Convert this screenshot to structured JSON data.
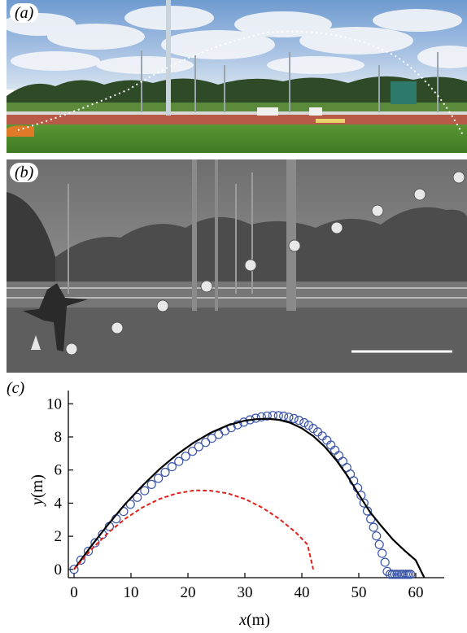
{
  "panels": {
    "a_label": "(a)",
    "b_label": "(b)",
    "c_label": "(c)"
  },
  "colors": {
    "measured_points": "#3a55a8",
    "model_curve": "#000000",
    "no_drag_curve": "#e0201c",
    "track": "#b85a48",
    "grass": "#4e8a2c"
  },
  "chart_data": {
    "type": "scatter",
    "title": "",
    "xlabel_var": "x",
    "xlabel_unit": "(m)",
    "ylabel_var": "y",
    "ylabel_unit": "(m)",
    "xlim": [
      -1,
      65
    ],
    "ylim": [
      -0.5,
      10.8
    ],
    "xticks": [
      0,
      10,
      20,
      30,
      40,
      50,
      60
    ],
    "yticks": [
      0,
      2,
      4,
      6,
      8,
      10
    ],
    "grid": false,
    "legend": "none",
    "series": [
      {
        "kind": "markers",
        "marker": "circle-open",
        "color": "#3a55a8",
        "x": [
          0.0,
          1.2,
          2.5,
          3.7,
          5.0,
          6.2,
          7.4,
          8.7,
          9.9,
          11.1,
          12.4,
          13.6,
          14.8,
          16.0,
          17.2,
          18.4,
          19.6,
          20.8,
          21.9,
          23.1,
          24.2,
          25.4,
          26.5,
          27.6,
          28.7,
          29.8,
          30.9,
          31.9,
          32.9,
          33.9,
          34.9,
          35.9,
          36.8,
          37.7,
          38.6,
          39.5,
          40.4,
          41.2,
          42.0,
          42.8,
          43.6,
          44.4,
          45.1,
          45.8,
          46.5,
          47.2,
          47.9,
          48.5,
          49.1,
          49.8,
          50.4,
          50.9,
          51.5,
          52.1,
          52.6,
          53.1,
          53.6,
          54.1,
          54.6,
          55.0,
          55.5,
          55.9,
          56.3,
          56.7,
          57.1,
          57.5,
          57.8,
          58.2,
          58.5,
          58.8,
          59.1
        ],
        "y": [
          0.0,
          0.56,
          1.09,
          1.61,
          2.11,
          2.59,
          3.05,
          3.5,
          3.93,
          4.35,
          4.75,
          5.13,
          5.5,
          5.86,
          6.2,
          6.52,
          6.83,
          7.13,
          7.41,
          7.67,
          7.92,
          8.15,
          8.36,
          8.56,
          8.73,
          8.89,
          9.03,
          9.13,
          9.21,
          9.26,
          9.29,
          9.28,
          9.25,
          9.19,
          9.11,
          9.0,
          8.86,
          8.7,
          8.51,
          8.3,
          8.06,
          7.8,
          7.51,
          7.2,
          6.87,
          6.52,
          6.15,
          5.76,
          5.35,
          4.92,
          4.47,
          4.01,
          3.53,
          3.04,
          2.54,
          2.02,
          1.5,
          0.97,
          0.43,
          -0.12,
          -0.3,
          -0.3,
          -0.3,
          -0.3,
          -0.3,
          -0.3,
          -0.3,
          -0.3,
          -0.3,
          -0.3,
          -0.3
        ]
      },
      {
        "kind": "line",
        "style": "solid",
        "color": "#000000",
        "x": [
          0,
          3,
          6,
          9,
          12,
          15,
          18,
          21,
          24,
          27,
          30,
          32,
          34,
          36,
          38,
          40,
          42,
          44,
          46,
          48,
          50,
          52,
          54,
          56,
          58,
          60,
          61.5
        ],
        "y": [
          0,
          1.4,
          2.72,
          3.95,
          5.05,
          6.05,
          6.92,
          7.65,
          8.25,
          8.7,
          8.98,
          9.07,
          9.1,
          9.03,
          8.85,
          8.52,
          8.05,
          7.42,
          6.62,
          5.65,
          4.52,
          3.45,
          2.6,
          1.8,
          1.15,
          0.55,
          -0.5
        ]
      },
      {
        "kind": "line",
        "style": "dashed",
        "color": "#e0201c",
        "x": [
          0,
          3,
          6,
          9,
          12,
          15,
          18,
          21,
          22,
          24,
          27,
          30,
          33,
          36,
          39,
          41,
          42
        ],
        "y": [
          0,
          1.19,
          2.21,
          3.06,
          3.74,
          4.25,
          4.59,
          4.76,
          4.77,
          4.75,
          4.59,
          4.25,
          3.74,
          3.06,
          2.21,
          1.5,
          0
        ]
      }
    ]
  }
}
